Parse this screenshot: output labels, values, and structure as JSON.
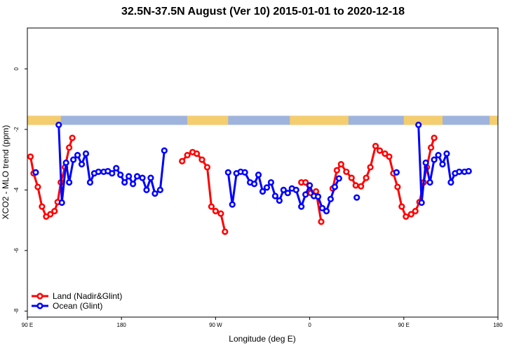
{
  "chart_data": {
    "type": "line",
    "title": "32.5N-37.5N August (Ver 10)   2015-01-01 to 2020-12-18",
    "xlabel": "Longitude (deg E)",
    "ylabel": "XCO2 - MLO trend (ppm)",
    "x_ticks": [
      {
        "value": 90,
        "label": "90 E"
      },
      {
        "value": 180,
        "label": "180"
      },
      {
        "value": 270,
        "label": "90 W"
      },
      {
        "value": 360,
        "label": "0"
      },
      {
        "value": 450,
        "label": "90 E"
      },
      {
        "value": 540,
        "label": "180"
      }
    ],
    "y_ticks": [
      0,
      -2,
      -4,
      -6,
      -8
    ],
    "xlim": [
      90,
      540
    ],
    "ylim": [
      -8.2,
      1.35
    ],
    "grid": false,
    "legend_position": "bottom-left",
    "land_mask_band": {
      "y_range": [
        -1.85,
        -1.55
      ],
      "ocean_color": "#9FB4DC",
      "land_color": "#F4CD6E",
      "land_segments": [
        [
          90,
          122
        ],
        [
          243,
          282
        ],
        [
          341,
          397
        ],
        [
          450,
          487
        ],
        [
          532,
          540
        ]
      ]
    },
    "series": [
      {
        "name": "Land (Nadir&Glint)",
        "color": "#FF0000",
        "segments": [
          [
            [
              93,
              -2.9
            ],
            [
              96,
              -3.45
            ],
            [
              100,
              -3.9
            ],
            [
              104,
              -4.55
            ],
            [
              108,
              -4.88
            ],
            [
              112,
              -4.8
            ],
            [
              116,
              -4.7
            ],
            [
              119,
              -4.4
            ],
            [
              122,
              -3.75
            ],
            [
              126,
              -3.25
            ],
            [
              130,
              -2.6
            ],
            [
              133,
              -2.28
            ]
          ],
          [
            [
              238,
              -3.05
            ],
            [
              243,
              -2.85
            ],
            [
              248,
              -2.75
            ],
            [
              252,
              -2.8
            ],
            [
              257,
              -3.0
            ],
            [
              262,
              -3.25
            ],
            [
              266,
              -4.55
            ],
            [
              270,
              -4.7
            ],
            [
              275,
              -4.78
            ],
            [
              279,
              -5.38
            ]
          ],
          [
            [
              352,
              -3.75
            ],
            [
              356,
              -3.75
            ],
            [
              361,
              -4.1
            ],
            [
              366,
              -4.05
            ],
            [
              371,
              -5.05
            ]
          ],
          [
            [
              382,
              -3.95
            ],
            [
              386,
              -3.35
            ],
            [
              390,
              -3.15
            ],
            [
              395,
              -3.4
            ],
            [
              400,
              -3.6
            ],
            [
              404,
              -3.85
            ],
            [
              409,
              -3.88
            ],
            [
              414,
              -3.6
            ],
            [
              418,
              -3.25
            ],
            [
              423,
              -2.55
            ],
            [
              427,
              -2.7
            ],
            [
              432,
              -2.8
            ],
            [
              436,
              -2.9
            ],
            [
              440,
              -3.45
            ],
            [
              444,
              -3.9
            ],
            [
              448,
              -4.55
            ],
            [
              452,
              -4.88
            ],
            [
              457,
              -4.8
            ],
            [
              461,
              -4.7
            ],
            [
              465,
              -4.4
            ],
            [
              469,
              -3.75
            ],
            [
              472,
              -3.25
            ],
            [
              476,
              -2.6
            ],
            [
              479,
              -2.28
            ]
          ]
        ]
      },
      {
        "name": "Ocean (Glint)",
        "color": "#0000FF",
        "segments": [
          [
            [
              98,
              -3.42
            ]
          ],
          [
            [
              120,
              -1.85
            ],
            [
              123,
              -4.42
            ],
            [
              127,
              -3.1
            ],
            [
              130,
              -3.75
            ],
            [
              134,
              -3.0
            ],
            [
              138,
              -2.85
            ],
            [
              142,
              -3.15
            ],
            [
              146,
              -2.8
            ],
            [
              150,
              -3.75
            ],
            [
              154,
              -3.45
            ],
            [
              158,
              -3.4
            ],
            [
              163,
              -3.4
            ],
            [
              167,
              -3.38
            ],
            [
              171,
              -3.45
            ],
            [
              175,
              -3.28
            ],
            [
              179,
              -3.5
            ],
            [
              183,
              -3.75
            ],
            [
              187,
              -3.55
            ],
            [
              191,
              -3.8
            ],
            [
              195,
              -3.55
            ],
            [
              200,
              -3.6
            ],
            [
              204,
              -4.0
            ],
            [
              208,
              -3.6
            ],
            [
              212,
              -4.12
            ],
            [
              217,
              -4.0
            ],
            [
              221,
              -2.7
            ]
          ],
          [
            [
              282,
              -3.42
            ],
            [
              286,
              -4.48
            ],
            [
              290,
              -3.45
            ],
            [
              294,
              -3.4
            ],
            [
              298,
              -3.42
            ],
            [
              303,
              -3.75
            ],
            [
              307,
              -3.8
            ],
            [
              311,
              -3.5
            ],
            [
              315,
              -4.05
            ],
            [
              319,
              -3.92
            ],
            [
              323,
              -3.75
            ],
            [
              327,
              -4.2
            ],
            [
              331,
              -4.35
            ],
            [
              335,
              -4.0
            ],
            [
              339,
              -4.1
            ],
            [
              343,
              -3.95
            ],
            [
              347,
              -4.0
            ],
            [
              352,
              -4.55
            ],
            [
              356,
              -4.15
            ],
            [
              360,
              -3.85
            ],
            [
              364,
              -4.2
            ],
            [
              368,
              -4.22
            ],
            [
              372,
              -4.6
            ],
            [
              376,
              -4.7
            ],
            [
              380,
              -4.3
            ],
            [
              384,
              -3.9
            ],
            [
              388,
              -3.62
            ]
          ],
          [
            [
              405,
              -4.25
            ]
          ],
          [
            [
              443,
              -3.42
            ]
          ],
          [
            [
              464,
              -1.85
            ],
            [
              467,
              -4.42
            ],
            [
              471,
              -3.1
            ],
            [
              475,
              -3.75
            ],
            [
              479,
              -3.0
            ],
            [
              483,
              -2.85
            ],
            [
              487,
              -3.15
            ],
            [
              491,
              -2.8
            ],
            [
              495,
              -3.75
            ],
            [
              499,
              -3.45
            ],
            [
              503,
              -3.4
            ],
            [
              508,
              -3.4
            ],
            [
              512,
              -3.38
            ]
          ]
        ]
      }
    ]
  }
}
